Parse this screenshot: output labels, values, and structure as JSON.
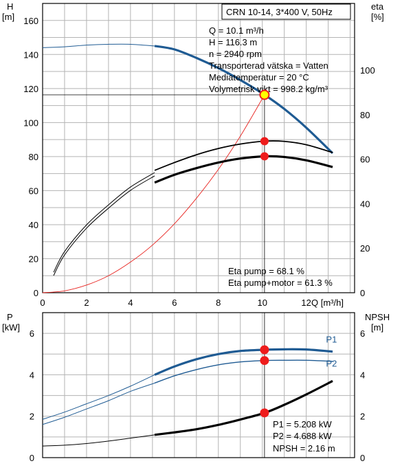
{
  "colors": {
    "blue": "#1f5b93",
    "black": "#000000",
    "red_curve": "#e8231f",
    "grid": "#b3b3b3",
    "operating_point_fill": "#ffff00",
    "marker_red": "#ee1c1c"
  },
  "chart_data": [
    {
      "type": "line",
      "panel": "top",
      "title": "CRN 10-14, 3*400 V, 50Hz",
      "ylabel_left": [
        "H",
        "[m]"
      ],
      "ylabel_right": [
        "eta",
        "[%]"
      ],
      "xlabel": "Q [m³/h]",
      "xlim": [
        0,
        14.2
      ],
      "ylim_left": [
        0,
        170
      ],
      "ylim_right": [
        0,
        130
      ],
      "xticks": [
        0,
        2,
        4,
        6,
        8,
        10,
        12
      ],
      "yticks_left": [
        0,
        20,
        40,
        60,
        80,
        100,
        120,
        140,
        160
      ],
      "yticks_right": [
        0,
        20,
        40,
        60,
        80,
        100
      ],
      "grid": true,
      "info_lines": [
        "Q = 10.1 m³/h",
        "H = 116.3 m",
        "n = 2940 rpm",
        "Transporterad vätska = Vatten",
        "Mediatemperatur = 20 °C",
        "Volymetrisk vikt = 998.2 kg/m³"
      ],
      "eta_lines": [
        "Eta pump = 68.1 %",
        "Eta pump+motor = 61.3 %"
      ],
      "series": [
        {
          "key": "H_extended",
          "axis": "left",
          "color": "blue",
          "width": 1,
          "x": [
            0,
            1,
            2,
            3,
            4,
            5.1
          ],
          "y": [
            144,
            144.5,
            145.5,
            146,
            146,
            145
          ]
        },
        {
          "key": "H",
          "axis": "left",
          "color": "blue",
          "width": 3.2,
          "x": [
            5.1,
            6,
            7,
            8,
            9,
            10.1,
            11,
            12,
            13.2
          ],
          "y": [
            145,
            143,
            138,
            132,
            125,
            116.3,
            108,
            97,
            82
          ]
        },
        {
          "key": "system_curve",
          "axis": "left",
          "color": "red_curve",
          "width": 0.9,
          "x": [
            0,
            1,
            2,
            3,
            4,
            5,
            6,
            7,
            8,
            9,
            10.1
          ],
          "y": [
            0,
            1.1,
            4.5,
            10,
            18,
            28,
            40.5,
            55.5,
            72.5,
            92,
            116.3
          ]
        },
        {
          "key": "eta_pump_ext",
          "axis": "right",
          "color": "black",
          "width": 1,
          "x": [
            0.5,
            1,
            2,
            3,
            4,
            5.1
          ],
          "y": [
            7.7,
            17,
            29,
            38,
            46,
            52.5
          ]
        },
        {
          "key": "eta_pump_ext2",
          "axis": "right",
          "color": "black",
          "width": 1,
          "x": [
            0.5,
            1,
            2,
            3,
            4,
            5.1
          ],
          "y": [
            9.2,
            18.5,
            30.5,
            39.5,
            47.5,
            54
          ]
        },
        {
          "key": "eta_pump",
          "axis": "right",
          "color": "black",
          "width": 1.8,
          "x": [
            5.1,
            6,
            7,
            8,
            9,
            10.1,
            11,
            12,
            13.2
          ],
          "y": [
            55,
            58.5,
            62,
            64.8,
            66.8,
            68.1,
            68,
            66.5,
            63
          ]
        },
        {
          "key": "eta_pump_motor",
          "axis": "right",
          "color": "black",
          "width": 3.2,
          "x": [
            5.1,
            6,
            7,
            8,
            9,
            10.1,
            11,
            12,
            13.2
          ],
          "y": [
            49.5,
            53,
            56,
            58.5,
            60.3,
            61.3,
            61,
            59.5,
            56.5
          ]
        }
      ],
      "markers": [
        {
          "x": 10.1,
          "y": 68.1,
          "axis": "right"
        },
        {
          "x": 10.1,
          "y": 61.3,
          "axis": "right"
        }
      ],
      "operating_point": {
        "x": 10.1,
        "y": 116.3
      }
    },
    {
      "type": "line",
      "panel": "bottom",
      "ylabel_left": [
        "P",
        "[kW]"
      ],
      "ylabel_right": [
        "NPSH",
        "[m]"
      ],
      "xlim": [
        0,
        14.2
      ],
      "ylim_left": [
        0,
        7
      ],
      "ylim_right": [
        0,
        7
      ],
      "yticks_left": [
        0,
        2,
        4,
        6
      ],
      "yticks_right": [
        0,
        2,
        4,
        6
      ],
      "grid": true,
      "info_lines": [
        "P1 = 5.208 kW",
        "P2 = 4.688 kW",
        "NPSH = 2.16 m"
      ],
      "series": [
        {
          "key": "P1_ext",
          "name": "P1",
          "axis": "left",
          "color": "blue",
          "width": 1,
          "x": [
            0,
            1,
            2,
            3,
            4,
            5.1
          ],
          "y": [
            1.85,
            2.2,
            2.6,
            3.0,
            3.45,
            4.0
          ]
        },
        {
          "key": "P1",
          "name": "P1",
          "axis": "left",
          "color": "blue",
          "width": 3.2,
          "x": [
            5.1,
            6,
            7,
            8,
            9,
            10.1,
            11,
            12,
            13.2
          ],
          "y": [
            4.0,
            4.4,
            4.75,
            5.0,
            5.15,
            5.208,
            5.23,
            5.22,
            5.12
          ]
        },
        {
          "key": "P2_ext",
          "name": "P2",
          "axis": "left",
          "color": "blue",
          "width": 1,
          "x": [
            0,
            1,
            2,
            3,
            4,
            5.1
          ],
          "y": [
            1.6,
            1.95,
            2.35,
            2.75,
            3.2,
            3.6
          ]
        },
        {
          "key": "P2",
          "name": "P2",
          "axis": "left",
          "color": "blue",
          "width": 1.4,
          "x": [
            5.1,
            6,
            7,
            8,
            9,
            10.1,
            11,
            12,
            13.2
          ],
          "y": [
            3.6,
            3.95,
            4.25,
            4.48,
            4.62,
            4.688,
            4.7,
            4.7,
            4.65
          ]
        },
        {
          "key": "NPSH_ext",
          "axis": "right",
          "color": "black",
          "width": 1,
          "x": [
            0,
            1,
            2,
            3,
            4,
            5.1
          ],
          "y": [
            0.56,
            0.6,
            0.68,
            0.8,
            0.94,
            1.1
          ]
        },
        {
          "key": "NPSH",
          "axis": "right",
          "color": "black",
          "width": 3.2,
          "x": [
            5.1,
            6,
            7,
            8,
            9,
            10.1,
            11,
            12,
            13.2
          ],
          "y": [
            1.1,
            1.22,
            1.37,
            1.58,
            1.84,
            2.16,
            2.55,
            3.05,
            3.7
          ]
        }
      ],
      "markers": [
        {
          "x": 10.1,
          "y": 5.208
        },
        {
          "x": 10.1,
          "y": 4.688
        },
        {
          "x": 10.1,
          "y": 2.16
        }
      ],
      "series_labels": [
        {
          "text": "P1",
          "x": 12.9,
          "y": 5.55
        },
        {
          "text": "P2",
          "x": 12.9,
          "y": 4.4
        }
      ]
    }
  ]
}
